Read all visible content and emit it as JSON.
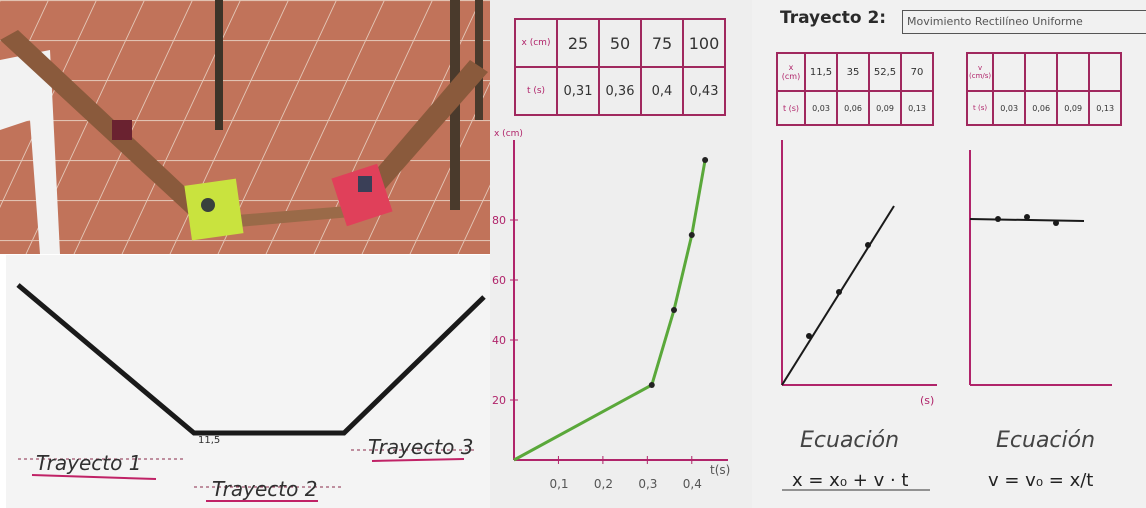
{
  "sketch": {
    "section_1": "Trayecto 1",
    "section_2": "Trayecto 2",
    "section_3": "Trayecto 3",
    "start_value": "11,5"
  },
  "graph": {
    "table_headers": [
      "x (cm)",
      "t (s)"
    ],
    "x_values": [
      "25",
      "50",
      "75",
      "100"
    ],
    "t_values": [
      "0,31",
      "0,36",
      "0,4",
      "0,43"
    ],
    "y_ticks": [
      "20",
      "40",
      "60",
      "80"
    ],
    "x_ticks": [
      "0,1",
      "0,2",
      "0,3",
      "0,4"
    ],
    "x_axis_label": "t(s)",
    "y_axis_label": "x (cm)"
  },
  "notes": {
    "title": "Trayecto 2:",
    "subtitle": "Movimiento Rectilíneo Uniforme",
    "table1_x": [
      "11,5",
      "35",
      "52,5",
      "70"
    ],
    "table1_t": [
      "0,03",
      "0,06",
      "0,09",
      "0,13"
    ],
    "table1_headers": [
      "x (cm)",
      "t (s)"
    ],
    "table2_headers": [
      "v (cm/s)",
      "t (s)"
    ],
    "table2_t": [
      "0,03",
      "0,06",
      "0,09",
      "0,13"
    ],
    "eq_label_1": "Ecuación",
    "eq_label_2": "Ecuación",
    "equation_1": "x = x₀ + v · t",
    "equation_2": "v = v₀ = x/t",
    "axis_label_t": "(s)"
  },
  "chart_data": {
    "type": "line",
    "x": [
      0,
      0.31,
      0.36,
      0.4,
      0.43
    ],
    "y": [
      0,
      25,
      50,
      75,
      100
    ],
    "xlabel": "t(s)",
    "ylabel": "x (cm)",
    "xlim": [
      0,
      0.45
    ],
    "ylim": [
      0,
      100
    ],
    "colors": {
      "line": "#5aa83a",
      "points": "#222222"
    }
  }
}
